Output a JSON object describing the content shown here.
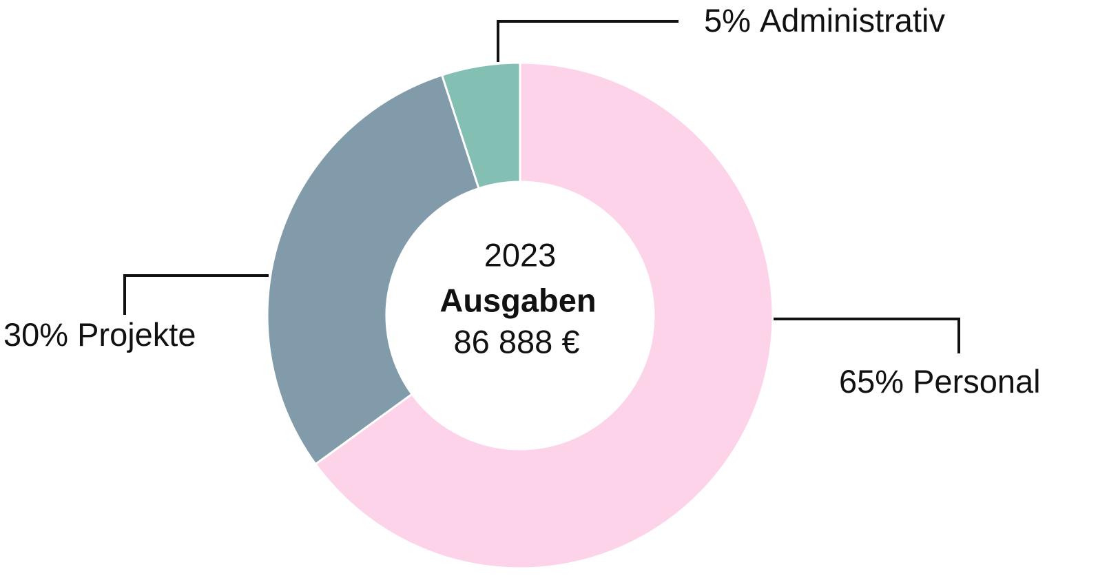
{
  "chart_data": {
    "type": "donut",
    "categories": [
      "Personal",
      "Projekte",
      "Administrativ"
    ],
    "values": [
      65,
      30,
      5
    ],
    "value_labels": [
      "65%",
      "30%",
      "5%"
    ],
    "colors": [
      "#fdd3ea",
      "#819bab",
      "#83c0b3"
    ],
    "center_text": [
      "2023",
      "Ausgaben",
      "86 888 €"
    ]
  }
}
